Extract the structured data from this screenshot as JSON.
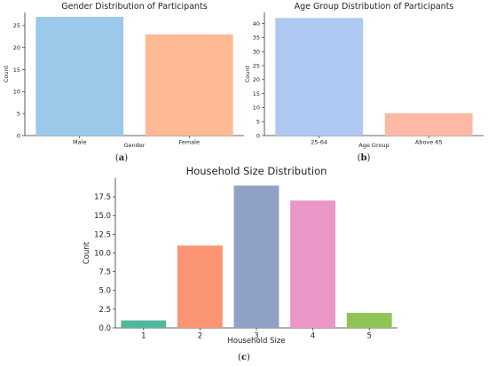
{
  "chart_data": [
    {
      "id": "a",
      "type": "bar",
      "title": "Gender Distribution of Participants",
      "xlabel": "Gender",
      "ylabel": "Count",
      "categories": [
        "Male",
        "Female"
      ],
      "values": [
        27,
        23
      ],
      "colors": [
        "#9cc8ea",
        "#ffb995"
      ],
      "ylim": [
        0,
        28
      ],
      "yticks": [
        "0",
        "5",
        "10",
        "15",
        "20",
        "25"
      ],
      "ytick_values": [
        0,
        5,
        10,
        15,
        20,
        25
      ],
      "caption_letter": "a",
      "grid": false
    },
    {
      "id": "b",
      "type": "bar",
      "title": "Age Group Distribution of Participants",
      "xlabel": "Age Group",
      "ylabel": "Count",
      "categories": [
        "25-64",
        "Above 65"
      ],
      "values": [
        42,
        8
      ],
      "colors": [
        "#aec8f2",
        "#fdb9a6"
      ],
      "ylim": [
        0,
        44
      ],
      "yticks": [
        "0",
        "5",
        "10",
        "15",
        "20",
        "25",
        "30",
        "35",
        "40"
      ],
      "ytick_values": [
        0,
        5,
        10,
        15,
        20,
        25,
        30,
        35,
        40
      ],
      "caption_letter": "b",
      "grid": false
    },
    {
      "id": "c",
      "type": "bar",
      "title": "Household Size Distribution",
      "xlabel": "Household Size",
      "ylabel": "Count",
      "categories": [
        "1",
        "2",
        "3",
        "4",
        "5"
      ],
      "values": [
        1,
        11,
        19,
        17,
        2
      ],
      "colors": [
        "#4fb89c",
        "#fb9473",
        "#8fa1c4",
        "#ea96c6",
        "#8ec454"
      ],
      "ylim": [
        0,
        20
      ],
      "yticks": [
        "0.0",
        "2.5",
        "5.0",
        "7.5",
        "10.0",
        "12.5",
        "15.0",
        "17.5"
      ],
      "ytick_values": [
        0,
        2.5,
        5,
        7.5,
        10,
        12.5,
        15,
        17.5
      ],
      "caption_letter": "c",
      "grid": false
    }
  ]
}
